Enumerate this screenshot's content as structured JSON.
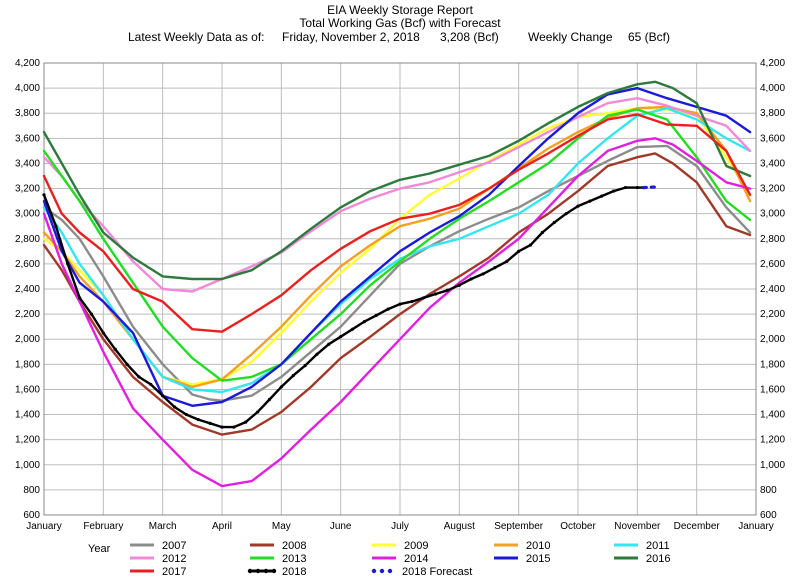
{
  "header": {
    "title": "EIA Weekly Storage Report",
    "subtitle": "Total Working Gas (Bcf) with Forecast",
    "latest_label": "Latest Weekly Data as of:",
    "latest_date": "Friday, November 2, 2018",
    "latest_value": "3,208 (Bcf)",
    "change_label": "Weekly Change",
    "change_value": "65 (Bcf)"
  },
  "chart_data": {
    "type": "line",
    "ylim": [
      600,
      4200
    ],
    "yticks": [
      600,
      800,
      1000,
      1200,
      1400,
      1600,
      1800,
      2000,
      2200,
      2400,
      2600,
      2800,
      3000,
      3200,
      3400,
      3600,
      3800,
      4000,
      4200
    ],
    "ytick_labels": [
      "600",
      "800",
      "1,000",
      "1,200",
      "1,400",
      "1,600",
      "1,800",
      "2,000",
      "2,200",
      "2,400",
      "2,600",
      "2,800",
      "3,000",
      "3,200",
      "3,400",
      "3,600",
      "3,800",
      "4,000",
      "4,200"
    ],
    "xlim": [
      0,
      12
    ],
    "xticks": [
      "January",
      "February",
      "March",
      "April",
      "May",
      "June",
      "July",
      "August",
      "September",
      "October",
      "November",
      "December",
      "January"
    ],
    "grid": true,
    "legend_title": "Year",
    "legend_position": "bottom",
    "series": [
      {
        "name": "2007",
        "color": "#8c8c8c",
        "dashed": false,
        "x": [
          0,
          0.3,
          0.6,
          1,
          1.5,
          2,
          2.5,
          2.8,
          3,
          3.5,
          4,
          4.5,
          5,
          5.5,
          6,
          6.5,
          7,
          7.5,
          8,
          8.5,
          9,
          9.5,
          10,
          10.5,
          11,
          11.5,
          11.9
        ],
        "values": [
          3050,
          2950,
          2800,
          2500,
          2100,
          1800,
          1560,
          1520,
          1510,
          1550,
          1700,
          1900,
          2100,
          2350,
          2600,
          2740,
          2860,
          2960,
          3050,
          3180,
          3300,
          3420,
          3530,
          3540,
          3380,
          3050,
          2850
        ]
      },
      {
        "name": "2008",
        "color": "#a0392a",
        "dashed": false,
        "x": [
          0,
          0.3,
          0.6,
          1,
          1.5,
          2,
          2.5,
          3,
          3.5,
          4,
          4.5,
          5,
          5.5,
          6,
          6.5,
          7,
          7.5,
          8,
          8.5,
          9,
          9.5,
          10,
          10.3,
          10.6,
          11,
          11.5,
          11.9
        ],
        "values": [
          2750,
          2550,
          2300,
          2000,
          1700,
          1500,
          1320,
          1240,
          1280,
          1420,
          1620,
          1850,
          2020,
          2200,
          2360,
          2500,
          2650,
          2850,
          3000,
          3180,
          3380,
          3450,
          3480,
          3400,
          3250,
          2900,
          2830
        ]
      },
      {
        "name": "2009",
        "color": "#ffff33",
        "dashed": false,
        "x": [
          0,
          0.3,
          0.6,
          1,
          1.5,
          2,
          2.5,
          3,
          3.5,
          4,
          4.5,
          5,
          5.5,
          6,
          6.5,
          7,
          7.5,
          8,
          8.5,
          9,
          9.5,
          10,
          10.5,
          11,
          11.5,
          11.9
        ],
        "values": [
          2800,
          2700,
          2550,
          2350,
          2000,
          1700,
          1640,
          1680,
          1820,
          2050,
          2300,
          2530,
          2720,
          2960,
          3150,
          3280,
          3420,
          3550,
          3680,
          3770,
          3800,
          3840,
          3830,
          3780,
          3450,
          3150
        ]
      },
      {
        "name": "2010",
        "color": "#f4a020",
        "dashed": false,
        "x": [
          0,
          0.3,
          0.6,
          1,
          1.5,
          2,
          2.5,
          3,
          3.5,
          4,
          4.5,
          5,
          5.5,
          6,
          6.5,
          7,
          7.5,
          8,
          8.5,
          9,
          9.5,
          10,
          10.5,
          11,
          11.5,
          11.9
        ],
        "values": [
          2850,
          2700,
          2500,
          2300,
          2000,
          1700,
          1620,
          1680,
          1880,
          2100,
          2350,
          2580,
          2750,
          2900,
          2960,
          3040,
          3200,
          3360,
          3520,
          3650,
          3760,
          3840,
          3850,
          3800,
          3500,
          3100
        ]
      },
      {
        "name": "2011",
        "color": "#33e6f0",
        "dashed": false,
        "x": [
          0,
          0.3,
          0.6,
          1,
          1.5,
          2,
          2.5,
          3,
          3.5,
          4,
          4.5,
          5,
          5.5,
          6,
          6.5,
          7,
          7.5,
          8,
          8.5,
          9,
          9.5,
          10,
          10.5,
          11,
          11.5,
          11.9
        ],
        "values": [
          3050,
          2850,
          2600,
          2350,
          2000,
          1700,
          1600,
          1580,
          1650,
          1800,
          2050,
          2280,
          2480,
          2640,
          2740,
          2800,
          2900,
          3000,
          3150,
          3400,
          3600,
          3780,
          3840,
          3750,
          3600,
          3500
        ]
      },
      {
        "name": "2012",
        "color": "#f08ad8",
        "dashed": false,
        "x": [
          0,
          0.3,
          0.6,
          1,
          1.5,
          2,
          2.5,
          3,
          3.5,
          4,
          4.5,
          5,
          5.5,
          6,
          6.5,
          7,
          7.5,
          8,
          8.5,
          9,
          9.5,
          10,
          10.5,
          11,
          11.5,
          11.9
        ],
        "values": [
          3450,
          3300,
          3100,
          2900,
          2620,
          2400,
          2380,
          2480,
          2580,
          2690,
          2860,
          3020,
          3120,
          3200,
          3250,
          3330,
          3410,
          3530,
          3650,
          3770,
          3880,
          3920,
          3860,
          3780,
          3700,
          3500
        ]
      },
      {
        "name": "2013",
        "color": "#22dd22",
        "dashed": false,
        "x": [
          0,
          0.3,
          0.6,
          1,
          1.5,
          2,
          2.5,
          3,
          3.5,
          4,
          4.5,
          5,
          5.5,
          6,
          6.5,
          7,
          7.5,
          8,
          8.5,
          9,
          9.5,
          10,
          10.5,
          11,
          11.5,
          11.9
        ],
        "values": [
          3500,
          3300,
          3100,
          2800,
          2450,
          2100,
          1850,
          1670,
          1700,
          1800,
          2000,
          2200,
          2430,
          2620,
          2800,
          2960,
          3100,
          3250,
          3400,
          3600,
          3780,
          3830,
          3750,
          3450,
          3100,
          2950
        ]
      },
      {
        "name": "2014",
        "color": "#e020e0",
        "dashed": false,
        "x": [
          0,
          0.3,
          0.6,
          1,
          1.5,
          2,
          2.5,
          3,
          3.5,
          4,
          4.5,
          5,
          5.5,
          6,
          6.5,
          7,
          7.5,
          8,
          8.5,
          9,
          9.5,
          10,
          10.3,
          10.6,
          11,
          11.5,
          11.9
        ],
        "values": [
          3000,
          2600,
          2300,
          1900,
          1450,
          1200,
          960,
          830,
          870,
          1050,
          1280,
          1500,
          1750,
          2000,
          2250,
          2450,
          2620,
          2800,
          3050,
          3300,
          3500,
          3580,
          3600,
          3550,
          3420,
          3250,
          3200
        ]
      },
      {
        "name": "2015",
        "color": "#1a1ad8",
        "dashed": false,
        "x": [
          0,
          0.3,
          0.6,
          1,
          1.5,
          2,
          2.5,
          3,
          3.5,
          4,
          4.5,
          5,
          5.5,
          6,
          6.5,
          7,
          7.5,
          8,
          8.5,
          9,
          9.5,
          10,
          10.5,
          11,
          11.5,
          11.9
        ],
        "values": [
          3100,
          2700,
          2450,
          2300,
          2050,
          1550,
          1470,
          1500,
          1620,
          1800,
          2050,
          2300,
          2500,
          2700,
          2850,
          2980,
          3150,
          3380,
          3600,
          3800,
          3950,
          4000,
          3920,
          3850,
          3780,
          3650
        ]
      },
      {
        "name": "2016",
        "color": "#2e7a3e",
        "dashed": false,
        "x": [
          0,
          0.3,
          0.6,
          1,
          1.5,
          2,
          2.5,
          3,
          3.5,
          4,
          4.5,
          5,
          5.5,
          6,
          6.5,
          7,
          7.5,
          8,
          8.5,
          9,
          9.5,
          10,
          10.3,
          10.6,
          11,
          11.5,
          11.9
        ],
        "values": [
          3650,
          3400,
          3150,
          2850,
          2650,
          2500,
          2480,
          2480,
          2550,
          2700,
          2880,
          3050,
          3180,
          3270,
          3320,
          3390,
          3460,
          3580,
          3720,
          3850,
          3960,
          4030,
          4050,
          4000,
          3880,
          3380,
          3300
        ]
      },
      {
        "name": "2017",
        "color": "#e82020",
        "dashed": false,
        "x": [
          0,
          0.3,
          0.6,
          1,
          1.5,
          2,
          2.5,
          3,
          3.5,
          4,
          4.5,
          5,
          5.5,
          6,
          6.5,
          7,
          7.5,
          8,
          8.5,
          9,
          9.5,
          10,
          10.5,
          11,
          11.5,
          11.9
        ],
        "values": [
          3300,
          3000,
          2850,
          2700,
          2400,
          2300,
          2080,
          2060,
          2200,
          2350,
          2550,
          2720,
          2860,
          2960,
          3000,
          3070,
          3200,
          3350,
          3480,
          3620,
          3750,
          3790,
          3710,
          3700,
          3500,
          3150
        ]
      },
      {
        "name": "2018",
        "color": "#000000",
        "dashed": false,
        "x": [
          0,
          0.2,
          0.4,
          0.6,
          0.8,
          1,
          1.2,
          1.4,
          1.6,
          1.8,
          2,
          2.2,
          2.4,
          2.6,
          2.8,
          3,
          3.2,
          3.4,
          3.6,
          3.8,
          4,
          4.2,
          4.4,
          4.6,
          4.8,
          5,
          5.2,
          5.4,
          5.6,
          5.8,
          6,
          6.2,
          6.4,
          6.6,
          6.8,
          7,
          7.2,
          7.4,
          7.6,
          7.8,
          8,
          8.2,
          8.4,
          8.6,
          8.8,
          9,
          9.2,
          9.4,
          9.6,
          9.8,
          10,
          10.1
        ],
        "values": [
          3150,
          2900,
          2600,
          2330,
          2200,
          2050,
          1920,
          1800,
          1700,
          1640,
          1550,
          1460,
          1400,
          1360,
          1330,
          1300,
          1300,
          1340,
          1420,
          1520,
          1620,
          1710,
          1790,
          1880,
          1960,
          2020,
          2080,
          2140,
          2190,
          2240,
          2280,
          2300,
          2330,
          2360,
          2390,
          2430,
          2480,
          2520,
          2570,
          2620,
          2700,
          2750,
          2850,
          2930,
          3000,
          3060,
          3100,
          3140,
          3180,
          3208,
          3208,
          3208
        ]
      },
      {
        "name": "2018 Forecast",
        "color": "#1a1ad8",
        "dashed": true,
        "x": [
          10.1,
          10.2,
          10.3
        ],
        "values": [
          3208,
          3210,
          3212
        ]
      }
    ]
  }
}
